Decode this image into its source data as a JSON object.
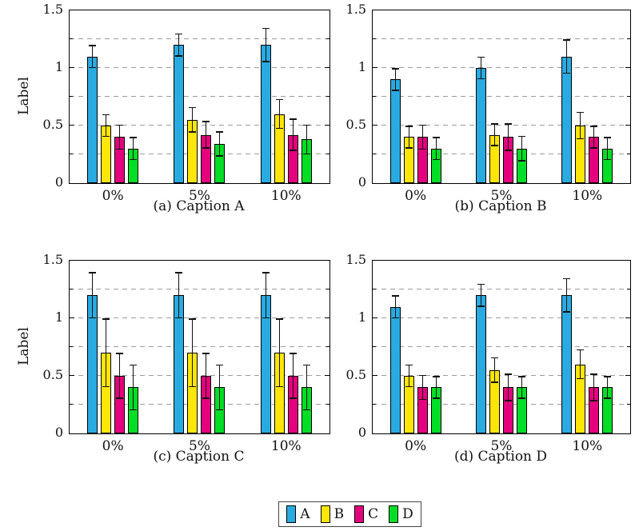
{
  "figure": {
    "background": "#ffffff",
    "ylabel": "Label",
    "ylim": [
      0,
      1.5
    ],
    "yticks": [
      {
        "value": 0,
        "label": "0"
      },
      {
        "value": 0.5,
        "label": "0.5"
      },
      {
        "value": 1,
        "label": "1"
      },
      {
        "value": 1.5,
        "label": "1.5"
      }
    ],
    "grid_values": [
      0.25,
      0.5,
      0.75,
      1.0,
      1.25
    ],
    "grid_color": "#9c9c9c",
    "grid_style": "dashed",
    "legend": {
      "position": "bottom-center",
      "items": [
        {
          "label": "A",
          "color": "#29abe2"
        },
        {
          "label": "B",
          "color": "#ffe608"
        },
        {
          "label": "C",
          "color": "#e5007d"
        },
        {
          "label": "D",
          "color": "#00de26"
        }
      ]
    }
  },
  "chart_data": [
    {
      "type": "bar",
      "caption": "(a) Caption A",
      "xlabel": "",
      "ylabel": "Label",
      "ylim": [
        0,
        1.5
      ],
      "categories": [
        "0%",
        "5%",
        "10%"
      ],
      "series": [
        {
          "name": "A",
          "color": "#29abe2",
          "values": [
            1.1,
            1.2,
            1.2
          ],
          "errors": [
            0.1,
            0.1,
            0.15
          ]
        },
        {
          "name": "B",
          "color": "#ffe608",
          "values": [
            0.5,
            0.55,
            0.6
          ],
          "errors": [
            0.1,
            0.11,
            0.13
          ]
        },
        {
          "name": "C",
          "color": "#e5007d",
          "values": [
            0.4,
            0.42,
            0.42
          ],
          "errors": [
            0.11,
            0.12,
            0.14
          ]
        },
        {
          "name": "D",
          "color": "#00de26",
          "values": [
            0.3,
            0.34,
            0.38
          ],
          "errors": [
            0.1,
            0.11,
            0.13
          ]
        }
      ]
    },
    {
      "type": "bar",
      "caption": "(b) Caption B",
      "xlabel": "",
      "ylabel": "",
      "ylim": [
        0,
        1.5
      ],
      "categories": [
        "0%",
        "5%",
        "10%"
      ],
      "series": [
        {
          "name": "A",
          "color": "#29abe2",
          "values": [
            0.9,
            1.0,
            1.1
          ],
          "errors": [
            0.1,
            0.1,
            0.15
          ]
        },
        {
          "name": "B",
          "color": "#ffe608",
          "values": [
            0.4,
            0.42,
            0.5
          ],
          "errors": [
            0.1,
            0.1,
            0.12
          ]
        },
        {
          "name": "C",
          "color": "#e5007d",
          "values": [
            0.4,
            0.4,
            0.4
          ],
          "errors": [
            0.11,
            0.12,
            0.1
          ]
        },
        {
          "name": "D",
          "color": "#00de26",
          "values": [
            0.3,
            0.3,
            0.3
          ],
          "errors": [
            0.1,
            0.11,
            0.1
          ]
        }
      ]
    },
    {
      "type": "bar",
      "caption": "(c) Caption C",
      "xlabel": "",
      "ylabel": "Label",
      "ylim": [
        0,
        1.5
      ],
      "categories": [
        "0%",
        "5%",
        "10%"
      ],
      "series": [
        {
          "name": "A",
          "color": "#29abe2",
          "values": [
            1.2,
            1.2,
            1.2
          ],
          "errors": [
            0.2,
            0.2,
            0.2
          ]
        },
        {
          "name": "B",
          "color": "#ffe608",
          "values": [
            0.7,
            0.7,
            0.7
          ],
          "errors": [
            0.3,
            0.3,
            0.3
          ]
        },
        {
          "name": "C",
          "color": "#e5007d",
          "values": [
            0.5,
            0.5,
            0.5
          ],
          "errors": [
            0.2,
            0.2,
            0.2
          ]
        },
        {
          "name": "D",
          "color": "#00de26",
          "values": [
            0.4,
            0.4,
            0.4
          ],
          "errors": [
            0.2,
            0.2,
            0.2
          ]
        }
      ]
    },
    {
      "type": "bar",
      "caption": "(d) Caption D",
      "xlabel": "",
      "ylabel": "",
      "ylim": [
        0,
        1.5
      ],
      "categories": [
        "0%",
        "5%",
        "10%"
      ],
      "series": [
        {
          "name": "A",
          "color": "#29abe2",
          "values": [
            1.1,
            1.2,
            1.2
          ],
          "errors": [
            0.1,
            0.1,
            0.15
          ]
        },
        {
          "name": "B",
          "color": "#ffe608",
          "values": [
            0.5,
            0.55,
            0.6
          ],
          "errors": [
            0.1,
            0.11,
            0.13
          ]
        },
        {
          "name": "C",
          "color": "#e5007d",
          "values": [
            0.4,
            0.4,
            0.4
          ],
          "errors": [
            0.11,
            0.12,
            0.12
          ]
        },
        {
          "name": "D",
          "color": "#00de26",
          "values": [
            0.4,
            0.4,
            0.4
          ],
          "errors": [
            0.1,
            0.1,
            0.1
          ]
        }
      ]
    }
  ]
}
